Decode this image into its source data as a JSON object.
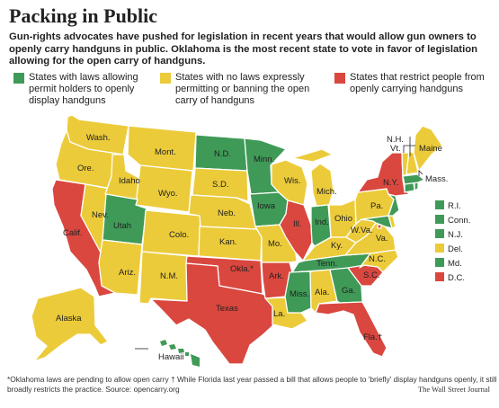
{
  "header": {
    "title": "Packing in Public",
    "subtitle": "Gun-rights advocates have pushed for legislation in recent years that would allow gun owners to openly carry handguns in public. Oklahoma is the most recent state to vote in favor of legislation allowing for the open carry of handguns."
  },
  "colors": {
    "green": "#3f9a57",
    "yellow": "#eccb3a",
    "red": "#d9473f"
  },
  "legend": [
    {
      "label": "States with laws allowing permit holders to openly display handguns",
      "color": "#3f9a57"
    },
    {
      "label": "States with no laws expressly permitting or banning the open carry of handguns",
      "color": "#eccb3a"
    },
    {
      "label": "States that restrict people from openly carrying handguns",
      "color": "#d9473f"
    }
  ],
  "states": [
    {
      "label": "Wash.",
      "category": "yellow"
    },
    {
      "label": "Ore.",
      "category": "yellow"
    },
    {
      "label": "Calif.",
      "category": "red"
    },
    {
      "label": "Idaho",
      "category": "yellow"
    },
    {
      "label": "Nev.",
      "category": "yellow"
    },
    {
      "label": "Mont.",
      "category": "yellow"
    },
    {
      "label": "Wyo.",
      "category": "yellow"
    },
    {
      "label": "Utah",
      "category": "green"
    },
    {
      "label": "Ariz.",
      "category": "yellow"
    },
    {
      "label": "Colo.",
      "category": "yellow"
    },
    {
      "label": "N.M.",
      "category": "yellow"
    },
    {
      "label": "N.D.",
      "category": "green"
    },
    {
      "label": "S.D.",
      "category": "yellow"
    },
    {
      "label": "Neb.",
      "category": "yellow"
    },
    {
      "label": "Kan.",
      "category": "yellow"
    },
    {
      "label": "Okla.*",
      "category": "red"
    },
    {
      "label": "Texas",
      "category": "red"
    },
    {
      "label": "Minn.",
      "category": "green"
    },
    {
      "label": "Iowa",
      "category": "green"
    },
    {
      "label": "Mo.",
      "category": "yellow"
    },
    {
      "label": "Ark.",
      "category": "red"
    },
    {
      "label": "La.",
      "category": "yellow"
    },
    {
      "label": "Wis.",
      "category": "yellow"
    },
    {
      "label": "Ill.",
      "category": "red"
    },
    {
      "label": "Mich.",
      "category": "yellow"
    },
    {
      "label": "Ind.",
      "category": "green"
    },
    {
      "label": "Ohio",
      "category": "yellow"
    },
    {
      "label": "Ky.",
      "category": "yellow"
    },
    {
      "label": "Tenn.",
      "category": "green"
    },
    {
      "label": "Miss.",
      "category": "green"
    },
    {
      "label": "Ala.",
      "category": "yellow"
    },
    {
      "label": "Ga.",
      "category": "green"
    },
    {
      "label": "Fla.†",
      "category": "red"
    },
    {
      "label": "S.C.",
      "category": "red"
    },
    {
      "label": "N.C.",
      "category": "yellow"
    },
    {
      "label": "Va.",
      "category": "yellow"
    },
    {
      "label": "W.Va.",
      "category": "yellow"
    },
    {
      "label": "Pa.",
      "category": "yellow"
    },
    {
      "label": "N.Y.",
      "category": "red"
    },
    {
      "label": "Maine",
      "category": "yellow"
    },
    {
      "label": "N.H.",
      "category": "yellow"
    },
    {
      "label": "Vt.",
      "category": "yellow"
    },
    {
      "label": "Mass.",
      "category": "green"
    },
    {
      "label": "Alaska",
      "category": "yellow"
    },
    {
      "label": "Hawaii",
      "category": "green"
    }
  ],
  "small_states": [
    {
      "label": "R.I.",
      "category": "green"
    },
    {
      "label": "Conn.",
      "category": "green"
    },
    {
      "label": "N.J.",
      "category": "green"
    },
    {
      "label": "Del.",
      "category": "yellow"
    },
    {
      "label": "Md.",
      "category": "green"
    },
    {
      "label": "D.C.",
      "category": "red"
    }
  ],
  "footnote": "*Oklahoma laws are pending to allow open carry  † While Florida last year passed a bill that allows people to 'briefly' display handguns openly, it still broadly restricts the practice.   Source: opencarry.org",
  "credit": "The Wall Street Journal"
}
